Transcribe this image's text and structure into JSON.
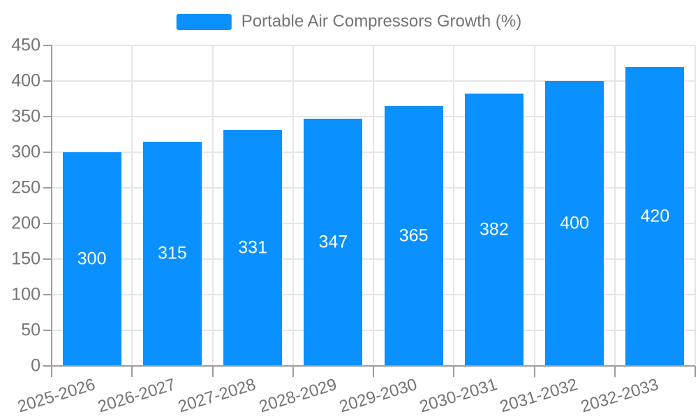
{
  "colors": {
    "bar": "#0A90FF",
    "grid": "#e6e6e6",
    "axis": "#9e9e9e",
    "text": "#757575",
    "bar_label": "#ffffff",
    "background": "#ffffff"
  },
  "legend": {
    "label": "Portable Air Compressors Growth (%)"
  },
  "chart_data": {
    "type": "bar",
    "title": "Portable Air Compressors Growth (%)",
    "categories": [
      "2025-2026",
      "2026-2027",
      "2027-2028",
      "2028-2029",
      "2029-2030",
      "2030-2031",
      "2031-2032",
      "2032-2033"
    ],
    "values": [
      300,
      315,
      331,
      347,
      365,
      382,
      400,
      420
    ],
    "value_label_position": "inside-center",
    "xlabel": "",
    "ylabel": "",
    "ylim": [
      0,
      450
    ],
    "yticks": [
      0,
      50,
      100,
      150,
      200,
      250,
      300,
      350,
      400,
      450
    ],
    "grid": true,
    "legend_position": "top-center",
    "x_tick_rotation_deg": 17,
    "bar_color": "#0A90FF"
  }
}
